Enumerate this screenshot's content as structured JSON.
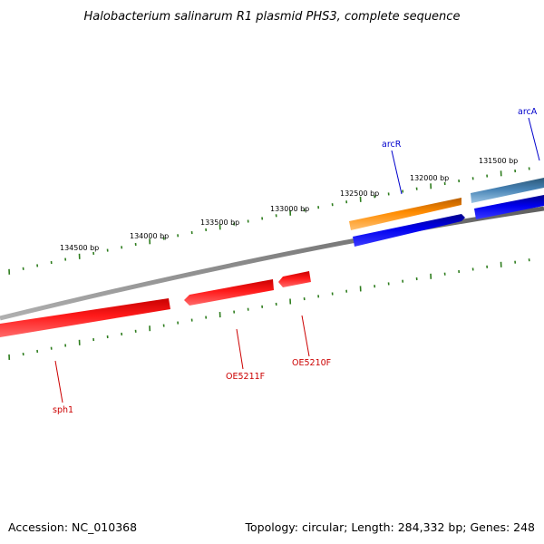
{
  "map": {
    "title": "Halobacterium salinarum R1 plasmid PHS3, complete sequence",
    "accession": "Accession: NC_010368",
    "summary": "Topology: circular; Length: 284,332 bp; Genes: 248"
  },
  "ticks": [
    {
      "position_bp": 134500,
      "label": "134500 bp"
    },
    {
      "position_bp": 134000,
      "label": "134000 bp"
    },
    {
      "position_bp": 133500,
      "label": "133500 bp"
    },
    {
      "position_bp": 133000,
      "label": "133000 bp"
    },
    {
      "position_bp": 132500,
      "label": "132500 bp"
    },
    {
      "position_bp": 132000,
      "label": "132000 bp"
    },
    {
      "position_bp": 131500,
      "label": "131500 bp"
    }
  ],
  "genes": [
    {
      "name": "arcA",
      "color": "#0000cc"
    },
    {
      "name": "arcR",
      "color": "#0000cc"
    },
    {
      "name": "OE5211F",
      "color": "#cc0000"
    },
    {
      "name": "OE5210F",
      "color": "#cc0000"
    },
    {
      "name": "sph1",
      "color": "#cc0000"
    }
  ],
  "colors": {
    "backbone": "#808080",
    "tick": "#2e7d1e",
    "feature_red": "#ff0000",
    "feature_orange": "#ff8c00",
    "feature_blue": "#0000ee",
    "feature_steel": "#4682b4"
  }
}
